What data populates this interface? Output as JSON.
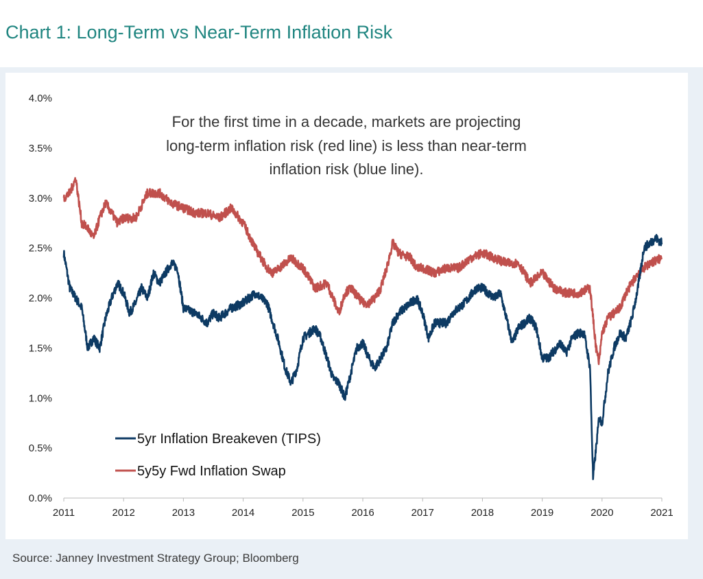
{
  "title": "Chart 1:  Long-Term vs Near-Term Inflation Risk",
  "source": "Source: Janney Investment Strategy Group; Bloomberg",
  "colors": {
    "title": "#1f8580",
    "breakeven": "#0d3a63",
    "swap": "#c0504d",
    "panel_bg": "#eaf0f6"
  },
  "chart_data": {
    "type": "line",
    "title": "Chart 1:  Long-Term vs Near-Term Inflation Risk",
    "xlabel": "",
    "ylabel": "",
    "xlim": [
      2011,
      2021
    ],
    "ylim": [
      0,
      4
    ],
    "x_ticks": [
      2011,
      2012,
      2013,
      2014,
      2015,
      2016,
      2017,
      2018,
      2019,
      2020,
      2021
    ],
    "x_tick_labels": [
      "2011",
      "2012",
      "2013",
      "2014",
      "2015",
      "2016",
      "2017",
      "2018",
      "2019",
      "2020",
      "2021"
    ],
    "y_ticks": [
      0,
      0.5,
      1,
      1.5,
      2,
      2.5,
      3,
      3.5,
      4
    ],
    "y_tick_labels": [
      "0.0%",
      "0.5%",
      "1.0%",
      "1.5%",
      "2.0%",
      "2.5%",
      "3.0%",
      "3.5%",
      "4.0%"
    ],
    "annotation": [
      "For the first time in a decade, markets are projecting",
      "long-term inflation risk (red line) is less than near-term",
      "inflation risk (blue line)."
    ],
    "legend_position": "bottom-left",
    "series": [
      {
        "name": "5yr Inflation Breakeven (TIPS)",
        "color": "#0d3a63",
        "x": [
          2011.0,
          2011.1,
          2011.2,
          2011.3,
          2011.4,
          2011.5,
          2011.6,
          2011.7,
          2011.8,
          2011.9,
          2012.0,
          2012.1,
          2012.2,
          2012.3,
          2012.4,
          2012.5,
          2012.6,
          2012.7,
          2012.8,
          2012.9,
          2013.0,
          2013.2,
          2013.4,
          2013.5,
          2013.6,
          2013.8,
          2014.0,
          2014.2,
          2014.4,
          2014.6,
          2014.7,
          2014.8,
          2014.9,
          2015.0,
          2015.2,
          2015.3,
          2015.5,
          2015.6,
          2015.7,
          2015.8,
          2015.9,
          2016.0,
          2016.1,
          2016.2,
          2016.4,
          2016.5,
          2016.6,
          2016.8,
          2016.9,
          2017.0,
          2017.1,
          2017.2,
          2017.4,
          2017.5,
          2017.7,
          2017.9,
          2018.0,
          2018.1,
          2018.2,
          2018.3,
          2018.5,
          2018.6,
          2018.8,
          2018.9,
          2019.0,
          2019.1,
          2019.3,
          2019.4,
          2019.5,
          2019.6,
          2019.7,
          2019.8,
          2019.85,
          2019.9,
          2019.95,
          2020.0,
          2020.1,
          2020.2,
          2020.3,
          2020.4,
          2020.5,
          2020.6,
          2020.7,
          2020.8,
          2020.9,
          2021.0
        ],
        "y": [
          2.45,
          2.1,
          2.0,
          1.9,
          1.5,
          1.6,
          1.5,
          1.8,
          2.0,
          2.15,
          2.05,
          1.85,
          1.95,
          2.1,
          2.0,
          2.25,
          2.15,
          2.25,
          2.35,
          2.3,
          1.9,
          1.85,
          1.75,
          1.85,
          1.8,
          1.9,
          1.95,
          2.05,
          1.95,
          1.55,
          1.3,
          1.15,
          1.3,
          1.6,
          1.7,
          1.6,
          1.2,
          1.15,
          1.0,
          1.25,
          1.5,
          1.55,
          1.4,
          1.3,
          1.5,
          1.75,
          1.85,
          1.95,
          2.0,
          1.85,
          1.6,
          1.75,
          1.75,
          1.85,
          1.95,
          2.1,
          2.1,
          2.05,
          2.0,
          2.05,
          1.55,
          1.7,
          1.8,
          1.7,
          1.4,
          1.4,
          1.55,
          1.45,
          1.6,
          1.65,
          1.65,
          1.3,
          0.2,
          0.5,
          0.8,
          0.75,
          1.25,
          1.5,
          1.65,
          1.6,
          1.8,
          2.1,
          2.5,
          2.55,
          2.6,
          2.55
        ]
      },
      {
        "name": "5y5y Fwd Inflation Swap",
        "color": "#c0504d",
        "x": [
          2011.0,
          2011.1,
          2011.2,
          2011.3,
          2011.4,
          2011.5,
          2011.6,
          2011.7,
          2011.8,
          2011.9,
          2012.0,
          2012.2,
          2012.4,
          2012.6,
          2012.8,
          2013.0,
          2013.2,
          2013.4,
          2013.6,
          2013.8,
          2014.0,
          2014.2,
          2014.4,
          2014.5,
          2014.6,
          2014.8,
          2015.0,
          2015.2,
          2015.4,
          2015.5,
          2015.6,
          2015.7,
          2015.8,
          2016.0,
          2016.1,
          2016.2,
          2016.3,
          2016.4,
          2016.5,
          2016.6,
          2016.8,
          2016.9,
          2017.0,
          2017.2,
          2017.4,
          2017.6,
          2017.8,
          2018.0,
          2018.2,
          2018.4,
          2018.6,
          2018.8,
          2019.0,
          2019.2,
          2019.4,
          2019.6,
          2019.8,
          2019.9,
          2019.95,
          2020.0,
          2020.1,
          2020.2,
          2020.3,
          2020.4,
          2020.6,
          2020.8,
          2021.0
        ],
        "y": [
          3.0,
          3.05,
          3.2,
          2.75,
          2.7,
          2.6,
          2.8,
          2.95,
          2.85,
          2.75,
          2.8,
          2.8,
          3.05,
          3.05,
          2.95,
          2.9,
          2.85,
          2.85,
          2.8,
          2.9,
          2.75,
          2.5,
          2.3,
          2.25,
          2.3,
          2.4,
          2.3,
          2.1,
          2.15,
          2.0,
          1.85,
          2.05,
          2.1,
          1.95,
          1.95,
          2.0,
          2.1,
          2.3,
          2.55,
          2.45,
          2.4,
          2.3,
          2.3,
          2.25,
          2.3,
          2.3,
          2.4,
          2.45,
          2.4,
          2.35,
          2.35,
          2.15,
          2.25,
          2.1,
          2.05,
          2.05,
          2.1,
          1.5,
          1.35,
          1.65,
          1.8,
          1.85,
          1.9,
          2.05,
          2.25,
          2.35,
          2.4
        ]
      }
    ]
  }
}
